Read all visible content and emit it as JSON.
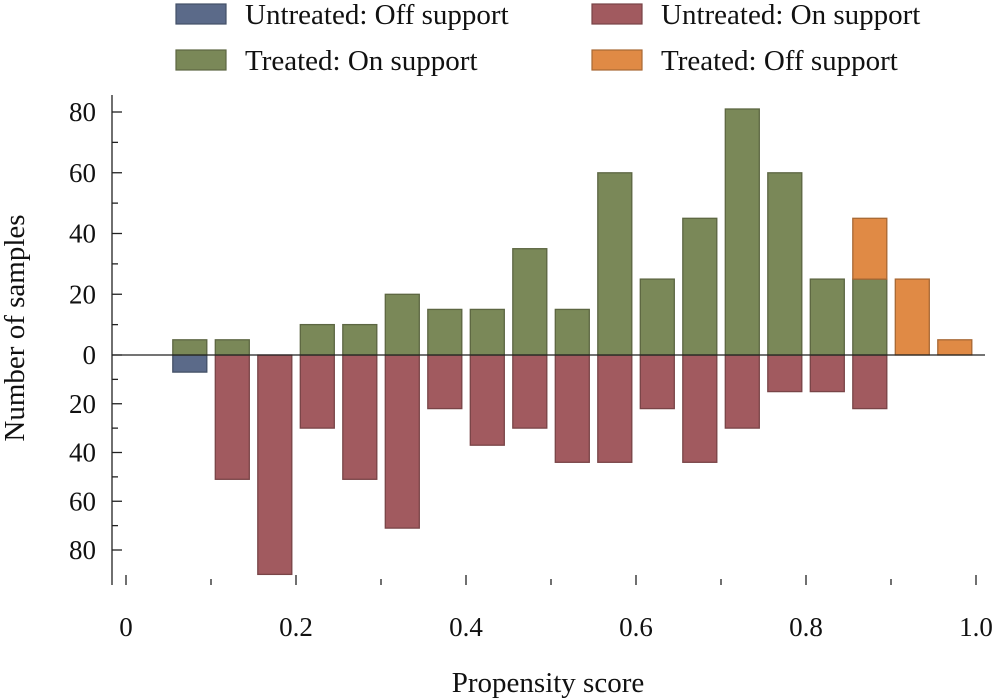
{
  "chart_data": {
    "type": "bar",
    "title": "",
    "xlabel": "Propensity score",
    "ylabel": "Number of samples",
    "xlim": [
      0,
      1.0
    ],
    "xticks": [
      0,
      0.2,
      0.4,
      0.6,
      0.8,
      1.0
    ],
    "xtick_labels": [
      "0",
      "0.2",
      "0.4",
      "0.6",
      "0.8",
      "1.0"
    ],
    "yticks_above": [
      {
        "value": 0,
        "label": "0"
      },
      {
        "value": 20,
        "label": "20"
      },
      {
        "value": 40,
        "label": "40"
      },
      {
        "value": 60,
        "label": "60"
      },
      {
        "value": 80,
        "label": "80"
      }
    ],
    "yticks_below": [
      {
        "value": 20,
        "label": "20"
      },
      {
        "value": 40,
        "label": "40"
      },
      {
        "value": 60,
        "label": "60"
      },
      {
        "value": 80,
        "label": "80"
      }
    ],
    "ylim_above": [
      0,
      85
    ],
    "ylim_below": [
      0,
      90
    ],
    "bin_width": 0.04,
    "legend_position": "top",
    "grid": false,
    "series": [
      {
        "name": "Untreated: Off support",
        "color": "#5b6a89",
        "direction": "below",
        "bars": [
          {
            "x": 0.075,
            "value": 7
          }
        ]
      },
      {
        "name": "Untreated: On support",
        "color": "#a15a5f",
        "direction": "below",
        "bars": [
          {
            "x": 0.125,
            "value": 51
          },
          {
            "x": 0.175,
            "value": 90
          },
          {
            "x": 0.225,
            "value": 30
          },
          {
            "x": 0.275,
            "value": 51
          },
          {
            "x": 0.325,
            "value": 71
          },
          {
            "x": 0.375,
            "value": 22
          },
          {
            "x": 0.425,
            "value": 37
          },
          {
            "x": 0.475,
            "value": 30
          },
          {
            "x": 0.525,
            "value": 44
          },
          {
            "x": 0.575,
            "value": 44
          },
          {
            "x": 0.625,
            "value": 22
          },
          {
            "x": 0.675,
            "value": 44
          },
          {
            "x": 0.725,
            "value": 30
          },
          {
            "x": 0.775,
            "value": 15
          },
          {
            "x": 0.825,
            "value": 15
          },
          {
            "x": 0.875,
            "value": 22
          }
        ]
      },
      {
        "name": "Treated: On support",
        "color": "#7a8858",
        "direction": "above",
        "bars": [
          {
            "x": 0.075,
            "value": 5
          },
          {
            "x": 0.125,
            "value": 5
          },
          {
            "x": 0.225,
            "value": 10
          },
          {
            "x": 0.275,
            "value": 10
          },
          {
            "x": 0.325,
            "value": 20
          },
          {
            "x": 0.375,
            "value": 15
          },
          {
            "x": 0.425,
            "value": 15
          },
          {
            "x": 0.475,
            "value": 35
          },
          {
            "x": 0.525,
            "value": 15
          },
          {
            "x": 0.575,
            "value": 60
          },
          {
            "x": 0.625,
            "value": 25
          },
          {
            "x": 0.675,
            "value": 45
          },
          {
            "x": 0.725,
            "value": 81
          },
          {
            "x": 0.775,
            "value": 60
          },
          {
            "x": 0.825,
            "value": 25
          },
          {
            "x": 0.875,
            "value": 25
          }
        ]
      },
      {
        "name": "Treated: Off support",
        "color": "#e08a45",
        "direction": "above",
        "bars": [
          {
            "x": 0.875,
            "value": 45,
            "stack_base": 25
          },
          {
            "x": 0.925,
            "value": 25
          },
          {
            "x": 0.975,
            "value": 5
          }
        ]
      }
    ]
  }
}
